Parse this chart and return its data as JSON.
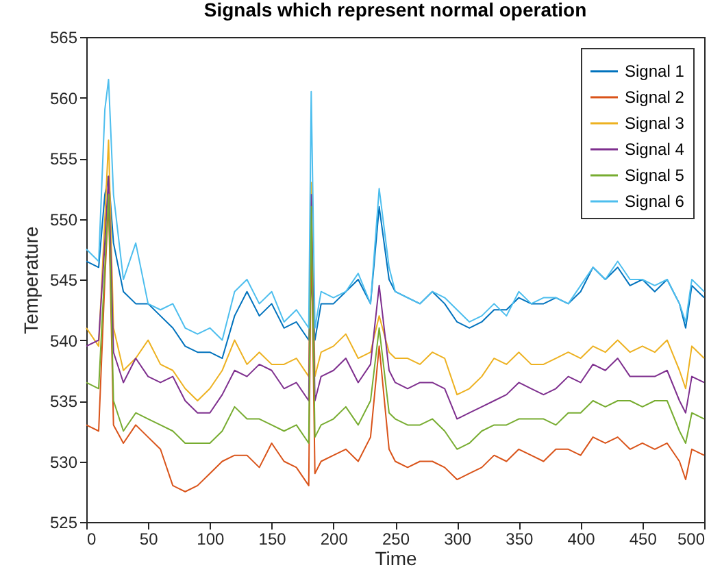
{
  "chart_data": {
    "type": "line",
    "title": "Signals which represent normal operation",
    "xlabel": "Time",
    "ylabel": "Temperature",
    "x": [
      0,
      10,
      15,
      18,
      22,
      30,
      40,
      50,
      60,
      70,
      80,
      90,
      100,
      110,
      120,
      130,
      140,
      150,
      160,
      170,
      180,
      182,
      185,
      190,
      200,
      210,
      220,
      230,
      237,
      245,
      250,
      260,
      270,
      280,
      290,
      300,
      310,
      320,
      330,
      340,
      350,
      360,
      370,
      380,
      390,
      400,
      410,
      420,
      430,
      440,
      450,
      460,
      470,
      480,
      485,
      490,
      500
    ],
    "series": [
      {
        "name": "Signal 1",
        "color": "#0072bd",
        "values": [
          546.5,
          546,
          552,
          553.5,
          548,
          544,
          543,
          543,
          542,
          541,
          539.5,
          539,
          539,
          538.5,
          542,
          544,
          542,
          543,
          541,
          541.5,
          540,
          545,
          540,
          543,
          543,
          544,
          545,
          543,
          551,
          545,
          544,
          543.5,
          543,
          544,
          543,
          541.5,
          541,
          541.5,
          542.5,
          542.5,
          543.5,
          543,
          543,
          543.5,
          543,
          544,
          546,
          545,
          546,
          544.5,
          545,
          544,
          545,
          543,
          541,
          544.5,
          543.5
        ]
      },
      {
        "name": "Signal 2",
        "color": "#d95319",
        "values": [
          533,
          532.5,
          545,
          551.5,
          533,
          531.5,
          533,
          532,
          531,
          528,
          527.5,
          528,
          529,
          530,
          530.5,
          530.5,
          529.5,
          531.5,
          530,
          529.5,
          528,
          549,
          529,
          530,
          530.5,
          531,
          530,
          532,
          539.5,
          531,
          530,
          529.5,
          530,
          530,
          529.5,
          528.5,
          529,
          529.5,
          530.5,
          530,
          531,
          530.5,
          530,
          531,
          531,
          530.5,
          532,
          531.5,
          532,
          531,
          531.5,
          531,
          531.5,
          530,
          528.5,
          531,
          530.5
        ]
      },
      {
        "name": "Signal 3",
        "color": "#edb120",
        "values": [
          541,
          539.5,
          550,
          556.5,
          541,
          537.5,
          538.5,
          540,
          538,
          537.5,
          536,
          535,
          536,
          537.5,
          540,
          538,
          539,
          538,
          538,
          538.5,
          537,
          553,
          537,
          539,
          539.5,
          540.5,
          538.5,
          539,
          542,
          539,
          538.5,
          538.5,
          538,
          539,
          538.5,
          535.5,
          536,
          537,
          538.5,
          538,
          539,
          538,
          538,
          538.5,
          539,
          538.5,
          539.5,
          539,
          540,
          539,
          539.5,
          539,
          540,
          537.5,
          536,
          539.5,
          538.5
        ]
      },
      {
        "name": "Signal 4",
        "color": "#7e2f8e",
        "values": [
          539.5,
          540,
          548,
          553.5,
          539,
          536.5,
          538.5,
          537,
          536.5,
          537,
          535,
          534,
          534,
          535.5,
          537.5,
          537,
          538,
          537.5,
          536,
          536.5,
          535,
          552,
          535,
          537,
          537.5,
          538.5,
          536.5,
          538,
          544.5,
          537.5,
          536.5,
          536,
          536.5,
          536.5,
          536,
          533.5,
          534,
          534.5,
          535,
          535.5,
          536.5,
          536,
          535.5,
          536,
          537,
          536.5,
          538,
          537.5,
          538.5,
          537,
          537,
          537,
          537.5,
          535,
          534,
          537,
          536.5
        ]
      },
      {
        "name": "Signal 5",
        "color": "#77ac30",
        "values": [
          536.5,
          536,
          546,
          552,
          535,
          532.5,
          534,
          533.5,
          533,
          532.5,
          531.5,
          531.5,
          531.5,
          532.5,
          534.5,
          533.5,
          533.5,
          533,
          532.5,
          533,
          531.5,
          551,
          532,
          533,
          533.5,
          534.5,
          533,
          535,
          541,
          534,
          533.5,
          533,
          533,
          533.5,
          532.5,
          531,
          531.5,
          532.5,
          533,
          533,
          533.5,
          533.5,
          533.5,
          533,
          534,
          534,
          535,
          534.5,
          535,
          535,
          534.5,
          535,
          535,
          532.5,
          531.5,
          534,
          533.5
        ]
      },
      {
        "name": "Signal 6",
        "color": "#4dbeee",
        "values": [
          547.5,
          546.5,
          559,
          561.5,
          552,
          545,
          548,
          543,
          542.5,
          543,
          541,
          540.5,
          541,
          540,
          544,
          545,
          543,
          544,
          541.5,
          542.5,
          541,
          560.5,
          541,
          544,
          543.5,
          544,
          545.5,
          543,
          552.5,
          546,
          544,
          543.5,
          543,
          544,
          543.5,
          542.5,
          541.5,
          542,
          543,
          542,
          544,
          543,
          543.5,
          543.5,
          543,
          544.5,
          546,
          545,
          546.5,
          545,
          545,
          544.5,
          545,
          543,
          541.5,
          545,
          544
        ]
      }
    ],
    "xlim": [
      0,
      500
    ],
    "xticks": [
      0,
      50,
      100,
      150,
      200,
      250,
      300,
      350,
      400,
      450,
      500
    ],
    "ylim": [
      525,
      565
    ],
    "yticks": [
      525,
      530,
      535,
      540,
      545,
      550,
      555,
      560,
      565
    ],
    "legend": "top right"
  }
}
